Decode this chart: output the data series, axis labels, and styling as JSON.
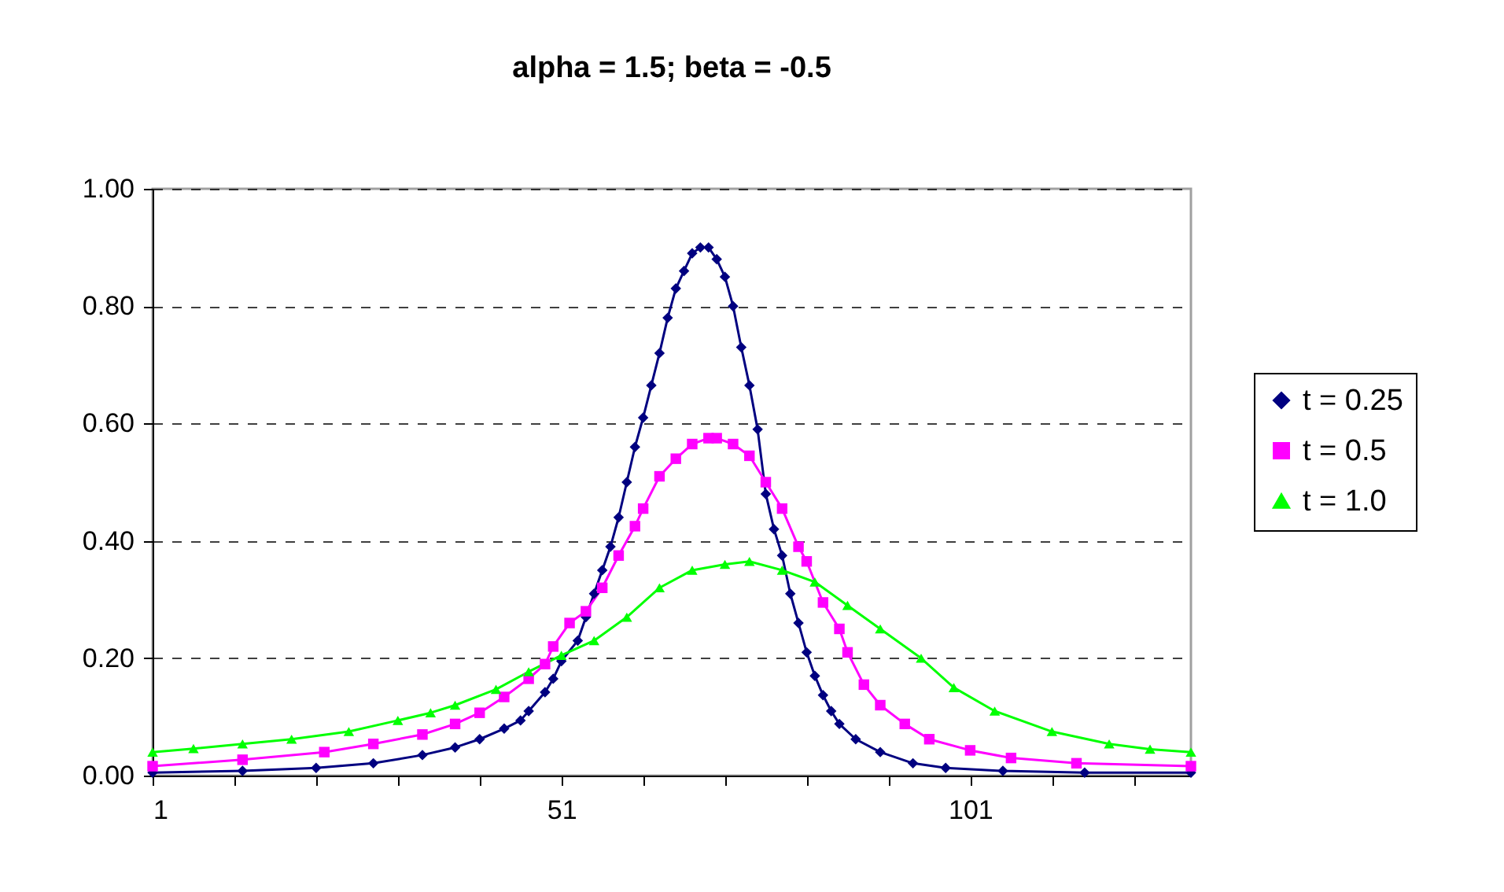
{
  "chart_data": {
    "type": "line",
    "title": "alpha = 1.5;   beta = -0.5",
    "xlim": [
      1,
      128
    ],
    "xticks": [
      1,
      {
        "value": 11,
        "label": null
      },
      {
        "value": 21,
        "label": null
      },
      {
        "value": 31,
        "label": null
      },
      {
        "value": 41,
        "label": null
      },
      51,
      {
        "value": 61,
        "label": null
      },
      {
        "value": 71,
        "label": null
      },
      {
        "value": 81,
        "label": null
      },
      {
        "value": 91,
        "label": null
      },
      101,
      {
        "value": 111,
        "label": null
      },
      {
        "value": 121,
        "label": null
      }
    ],
    "ylim": [
      0,
      1
    ],
    "yticks": [
      {
        "value": 0,
        "label": "0.00"
      },
      {
        "value": 0.2,
        "label": "0.20"
      },
      {
        "value": 0.4,
        "label": "0.40"
      },
      {
        "value": 0.6,
        "label": "0.60"
      },
      {
        "value": 0.8,
        "label": "0.80"
      },
      {
        "value": 1,
        "label": "1.00"
      }
    ],
    "grid": "y",
    "legend": "right",
    "line_style": "solid",
    "series": [
      {
        "name": "t = 0.25",
        "color": "#000080",
        "marker": "diamond",
        "x": [
          1,
          12,
          21,
          28,
          34,
          38,
          41,
          44,
          46,
          47,
          49,
          50,
          51,
          53,
          54,
          55,
          56,
          57,
          58,
          59,
          60,
          61,
          62,
          63,
          64,
          65,
          66,
          67,
          68,
          69,
          70,
          71,
          72,
          73,
          74,
          75,
          76,
          77,
          78,
          79,
          80,
          81,
          82,
          83,
          84,
          85,
          87,
          90,
          94,
          98,
          105,
          115,
          128
        ],
        "values": [
          0.005,
          0.008,
          0.013,
          0.021,
          0.035,
          0.048,
          0.062,
          0.08,
          0.094,
          0.11,
          0.142,
          0.165,
          0.195,
          0.23,
          0.27,
          0.31,
          0.35,
          0.39,
          0.44,
          0.5,
          0.56,
          0.61,
          0.665,
          0.72,
          0.78,
          0.83,
          0.86,
          0.89,
          0.9,
          0.9,
          0.88,
          0.85,
          0.8,
          0.73,
          0.665,
          0.59,
          0.48,
          0.42,
          0.375,
          0.31,
          0.26,
          0.21,
          0.17,
          0.137,
          0.11,
          0.088,
          0.062,
          0.04,
          0.021,
          0.013,
          0.008,
          0.005,
          0.005
        ]
      },
      {
        "name": "t = 0.5",
        "color": "#ff00ff",
        "marker": "square",
        "x": [
          1,
          12,
          22,
          28,
          34,
          38,
          41,
          44,
          47,
          49,
          50,
          52,
          54,
          56,
          58,
          60,
          61,
          63,
          65,
          67,
          69,
          70,
          72,
          74,
          76,
          78,
          80,
          81,
          83,
          85,
          86,
          88,
          90,
          93,
          96,
          101,
          106,
          114,
          128
        ],
        "values": [
          0.016,
          0.027,
          0.04,
          0.054,
          0.07,
          0.088,
          0.107,
          0.134,
          0.165,
          0.19,
          0.22,
          0.26,
          0.28,
          0.32,
          0.375,
          0.425,
          0.455,
          0.51,
          0.54,
          0.565,
          0.575,
          0.575,
          0.565,
          0.545,
          0.5,
          0.455,
          0.39,
          0.365,
          0.295,
          0.25,
          0.21,
          0.155,
          0.12,
          0.088,
          0.062,
          0.043,
          0.03,
          0.021,
          0.016
        ]
      },
      {
        "name": "t = 1.0",
        "color": "#00ff00",
        "marker": "triangle",
        "x": [
          1,
          6,
          12,
          18,
          25,
          31,
          35,
          38,
          43,
          47,
          51,
          55,
          59,
          63,
          67,
          71,
          74,
          78,
          82,
          86,
          90,
          95,
          99,
          104,
          111,
          118,
          123,
          128
        ],
        "values": [
          0.04,
          0.046,
          0.054,
          0.062,
          0.075,
          0.094,
          0.107,
          0.12,
          0.147,
          0.177,
          0.205,
          0.23,
          0.27,
          0.32,
          0.35,
          0.36,
          0.365,
          0.35,
          0.33,
          0.29,
          0.25,
          0.2,
          0.15,
          0.11,
          0.075,
          0.054,
          0.045,
          0.04
        ]
      }
    ]
  }
}
